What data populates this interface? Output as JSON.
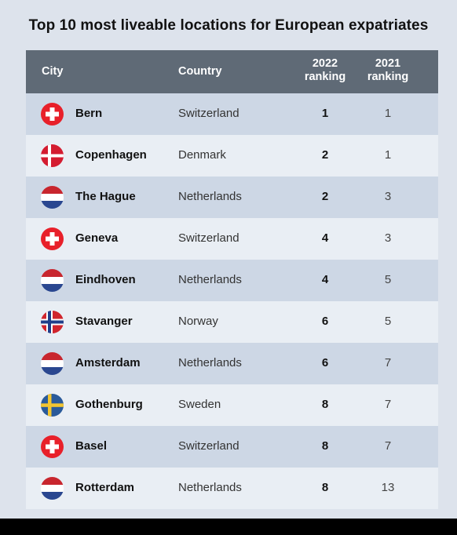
{
  "title": "Top 10 most liveable locations for European expatriates",
  "chart_data": {
    "type": "table",
    "columns": [
      "City",
      "Country",
      "2022\nranking",
      "2021\nranking"
    ],
    "header": {
      "city": "City",
      "country": "Country",
      "rank2022_line1": "2022",
      "rank2022_line2": "ranking",
      "rank2021_line1": "2021",
      "rank2021_line2": "ranking"
    },
    "rows": [
      {
        "flag": "switzerland-flag-icon",
        "city": "Bern",
        "country": "Switzerland",
        "rank2022": "1",
        "rank2021": "1"
      },
      {
        "flag": "denmark-flag-icon",
        "city": "Copenhagen",
        "country": "Denmark",
        "rank2022": "2",
        "rank2021": "1"
      },
      {
        "flag": "netherlands-flag-icon",
        "city": "The Hague",
        "country": "Netherlands",
        "rank2022": "2",
        "rank2021": "3"
      },
      {
        "flag": "switzerland-flag-icon",
        "city": "Geneva",
        "country": "Switzerland",
        "rank2022": "4",
        "rank2021": "3"
      },
      {
        "flag": "netherlands-flag-icon",
        "city": "Eindhoven",
        "country": "Netherlands",
        "rank2022": "4",
        "rank2021": "5"
      },
      {
        "flag": "norway-flag-icon",
        "city": "Stavanger",
        "country": "Norway",
        "rank2022": "6",
        "rank2021": "5"
      },
      {
        "flag": "netherlands-flag-icon",
        "city": "Amsterdam",
        "country": "Netherlands",
        "rank2022": "6",
        "rank2021": "7"
      },
      {
        "flag": "sweden-flag-icon",
        "city": "Gothenburg",
        "country": "Sweden",
        "rank2022": "8",
        "rank2021": "7"
      },
      {
        "flag": "switzerland-flag-icon",
        "city": "Basel",
        "country": "Switzerland",
        "rank2022": "8",
        "rank2021": "7"
      },
      {
        "flag": "netherlands-flag-icon",
        "city": "Rotterdam",
        "country": "Netherlands",
        "rank2022": "8",
        "rank2021": "13"
      }
    ]
  },
  "colors": {
    "header_bg": "#5f6a76",
    "row_dark": "#cdd7e5",
    "row_light": "#e9eef4",
    "page_bg": "#dde3ec"
  }
}
